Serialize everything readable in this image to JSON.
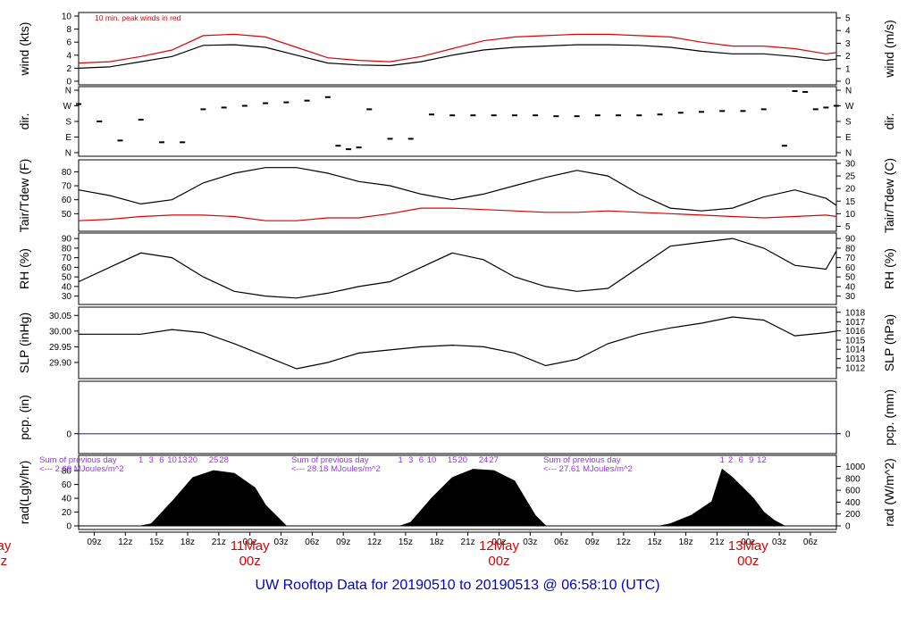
{
  "title": "UW Rooftop Data for 20190510  to  20190513 @ 06:58:10  (UTC)",
  "x_ticks": [
    "09z",
    "12z",
    "15z",
    "18z",
    "21z",
    "00z",
    "03z",
    "06z",
    "09z",
    "12z",
    "15z",
    "18z",
    "21z",
    "00z",
    "03z",
    "06z",
    "09z",
    "12z",
    "15z",
    "18z",
    "21z",
    "00z",
    "03z",
    "06z"
  ],
  "day_labels": [
    {
      "day": "11May",
      "time": "00z"
    },
    {
      "day": "12May",
      "time": "00z"
    },
    {
      "day": "13May",
      "time": "00z"
    },
    {
      "day": "May",
      "time": "00z"
    }
  ],
  "chart_data": [
    {
      "type": "line",
      "panel": "wind",
      "ylabel_left": "wind (kts)",
      "ylabel_right": "wind (m/s)",
      "note": "10 min. peak winds in red",
      "left_ticks": [
        "0",
        "2",
        "4",
        "6",
        "8",
        "10"
      ],
      "right_ticks": [
        "0",
        "1",
        "2",
        "3",
        "4",
        "5"
      ],
      "ylim": [
        0,
        10
      ],
      "series": [
        {
          "color": "#000000",
          "x": [
            0,
            3,
            6,
            9,
            12,
            15,
            18,
            21,
            24,
            27,
            30,
            33,
            36,
            39,
            42,
            45,
            48,
            51,
            54,
            57,
            60,
            63,
            66,
            69,
            72,
            73
          ],
          "y": [
            2,
            2.2,
            3,
            3.8,
            5.5,
            5.6,
            5.2,
            4,
            2.8,
            2.5,
            2.4,
            3,
            4,
            4.8,
            5.2,
            5.4,
            5.6,
            5.6,
            5.5,
            5.2,
            4.6,
            4.2,
            4.2,
            3.8,
            3.2,
            3.4
          ]
        },
        {
          "color": "#e00000",
          "x": [
            0,
            3,
            6,
            9,
            12,
            15,
            18,
            21,
            24,
            27,
            30,
            33,
            36,
            39,
            42,
            45,
            48,
            51,
            54,
            57,
            60,
            63,
            66,
            69,
            72,
            73
          ],
          "y": [
            2.8,
            3,
            3.8,
            4.8,
            7,
            7.2,
            6.8,
            5.2,
            3.6,
            3.2,
            3,
            3.8,
            5,
            6.2,
            6.8,
            7,
            7.2,
            7.2,
            7,
            6.8,
            6,
            5.4,
            5.4,
            5,
            4.2,
            4.4
          ]
        }
      ]
    },
    {
      "type": "scatter",
      "panel": "dir",
      "ylabel_left": "dir.",
      "ylabel_right": "dir.",
      "left_ticks": [
        "N",
        "E",
        "S",
        "W",
        "N"
      ],
      "right_ticks": [
        "N",
        "E",
        "S",
        "W",
        "N"
      ],
      "ylim": [
        0,
        360
      ],
      "series": [
        {
          "color": "#000000",
          "x": [
            0,
            2,
            4,
            6,
            8,
            10,
            12,
            14,
            16,
            18,
            20,
            22,
            24,
            25,
            26,
            27,
            28,
            30,
            32,
            34,
            36,
            38,
            40,
            42,
            44,
            46,
            48,
            50,
            52,
            54,
            56,
            58,
            60,
            62,
            64,
            66,
            68,
            69,
            70,
            71,
            72,
            73
          ],
          "y": [
            280,
            180,
            70,
            190,
            60,
            60,
            250,
            260,
            270,
            285,
            290,
            300,
            320,
            40,
            20,
            30,
            250,
            80,
            80,
            220,
            215,
            215,
            215,
            215,
            215,
            210,
            210,
            215,
            215,
            215,
            220,
            230,
            235,
            240,
            240,
            250,
            40,
            355,
            350,
            250,
            260,
            270
          ]
        }
      ]
    },
    {
      "type": "line",
      "panel": "temperature",
      "ylabel_left": "Tair/Tdew (F)",
      "ylabel_right": "Tair/Tdew (C)",
      "left_ticks": [
        "50",
        "60",
        "70",
        "80"
      ],
      "right_ticks": [
        "5",
        "10",
        "15",
        "20",
        "25",
        "30"
      ],
      "ylim": [
        40,
        86
      ],
      "series": [
        {
          "color": "#000000",
          "x": [
            0,
            3,
            6,
            9,
            12,
            15,
            18,
            21,
            24,
            27,
            30,
            33,
            36,
            39,
            42,
            45,
            48,
            51,
            54,
            57,
            60,
            63,
            66,
            69,
            72,
            73
          ],
          "y": [
            67,
            63,
            57,
            60,
            72,
            79,
            83,
            83,
            79,
            73,
            70,
            64,
            60,
            64,
            70,
            76,
            81,
            77,
            64,
            54,
            52,
            54,
            62,
            67,
            61,
            56
          ]
        },
        {
          "color": "#e00000",
          "x": [
            0,
            3,
            6,
            9,
            12,
            15,
            18,
            21,
            24,
            27,
            30,
            33,
            36,
            39,
            42,
            45,
            48,
            51,
            54,
            57,
            60,
            63,
            66,
            69,
            72,
            73
          ],
          "y": [
            45,
            46,
            48,
            49,
            49,
            48,
            45,
            45,
            47,
            47,
            50,
            54,
            54,
            53,
            52,
            51,
            51,
            52,
            51,
            50,
            49,
            48,
            47,
            48,
            49,
            48
          ]
        }
      ]
    },
    {
      "type": "line",
      "panel": "rh",
      "ylabel_left": "RH (%)",
      "ylabel_right": "RH (%)",
      "left_ticks": [
        "30",
        "40",
        "50",
        "60",
        "70",
        "80",
        "90"
      ],
      "right_ticks": [
        "30",
        "40",
        "50",
        "60",
        "70",
        "80",
        "90"
      ],
      "ylim": [
        25,
        92
      ],
      "series": [
        {
          "color": "#000000",
          "x": [
            0,
            3,
            6,
            9,
            12,
            15,
            18,
            21,
            24,
            27,
            30,
            33,
            36,
            39,
            42,
            45,
            48,
            51,
            54,
            57,
            60,
            63,
            66,
            69,
            72,
            73
          ],
          "y": [
            45,
            60,
            75,
            70,
            50,
            35,
            30,
            28,
            33,
            40,
            45,
            60,
            75,
            68,
            50,
            40,
            35,
            38,
            60,
            82,
            86,
            90,
            80,
            62,
            58,
            77
          ]
        }
      ]
    },
    {
      "type": "line",
      "panel": "pressure",
      "ylabel_left": "SLP (inHg)",
      "ylabel_right": "SLP (hPa)",
      "left_ticks": [
        "29.90",
        "29.95",
        "30.00",
        "30.05"
      ],
      "right_ticks": [
        "1012",
        "1013",
        "1014",
        "1015",
        "1016",
        "1017",
        "1018"
      ],
      "ylim": [
        29.86,
        30.065
      ],
      "series": [
        {
          "color": "#000000",
          "x": [
            0,
            3,
            6,
            9,
            12,
            15,
            18,
            21,
            24,
            27,
            30,
            33,
            36,
            39,
            42,
            45,
            48,
            51,
            54,
            57,
            60,
            63,
            66,
            69,
            72,
            73
          ],
          "y": [
            29.99,
            29.99,
            29.99,
            30.005,
            29.995,
            29.96,
            29.92,
            29.88,
            29.9,
            29.93,
            29.94,
            29.95,
            29.955,
            29.95,
            29.93,
            29.89,
            29.91,
            29.96,
            29.99,
            30.01,
            30.025,
            30.045,
            30.035,
            29.985,
            29.995,
            30.0
          ]
        }
      ]
    },
    {
      "type": "line",
      "panel": "precipitation",
      "ylabel_left": "pcp. (in)",
      "ylabel_right": "pcp. (mm)",
      "left_ticks": [
        "0"
      ],
      "right_ticks": [
        "0"
      ],
      "ylim": [
        -1,
        3
      ],
      "series": [
        {
          "color": "#2b2bcc",
          "x": [
            0,
            73
          ],
          "y": [
            0,
            0
          ]
        }
      ]
    },
    {
      "type": "area",
      "panel": "radiation",
      "ylabel_left": "rad(Lgly/hr)",
      "ylabel_right": "rad (W/m^2)",
      "left_ticks": [
        "0",
        "20",
        "40",
        "60",
        "80"
      ],
      "right_ticks": [
        "0",
        "200",
        "400",
        "600",
        "800",
        "1000"
      ],
      "ylim": [
        0,
        97
      ],
      "series": [
        {
          "color": "#000000",
          "x": [
            0,
            5,
            6,
            7,
            9,
            11,
            13,
            15,
            17,
            18,
            19,
            20,
            30,
            31,
            32,
            34,
            36,
            38,
            40,
            42,
            43,
            44,
            45,
            55,
            56,
            57,
            59,
            61,
            62,
            63,
            64,
            65,
            66,
            67,
            68,
            73
          ],
          "y": [
            0,
            0,
            0,
            3,
            35,
            70,
            80,
            76,
            55,
            30,
            15,
            0,
            0,
            0,
            5,
            40,
            70,
            82,
            80,
            65,
            40,
            15,
            0,
            0,
            0,
            3,
            15,
            35,
            82,
            70,
            55,
            40,
            20,
            8,
            0,
            0
          ]
        }
      ],
      "annotations": [
        {
          "text": "Sum of previous day",
          "line2": "<--- 2.69 MJoules/m^2"
        },
        {
          "text": "Sum of previous day",
          "line2": "<--- 28.18 MJoules/m^2"
        },
        {
          "text": "Sum of previous day",
          "line2": "<--- 27.61 MJoules/m^2"
        }
      ],
      "hour_marks": [
        [
          "1",
          "3",
          "6",
          "10",
          "13",
          "20",
          "25",
          "28"
        ],
        [
          "1",
          "3",
          "6",
          "10",
          "15",
          "20",
          "24",
          "27"
        ],
        [
          "1",
          "2",
          "6",
          "9",
          "12"
        ]
      ]
    }
  ]
}
